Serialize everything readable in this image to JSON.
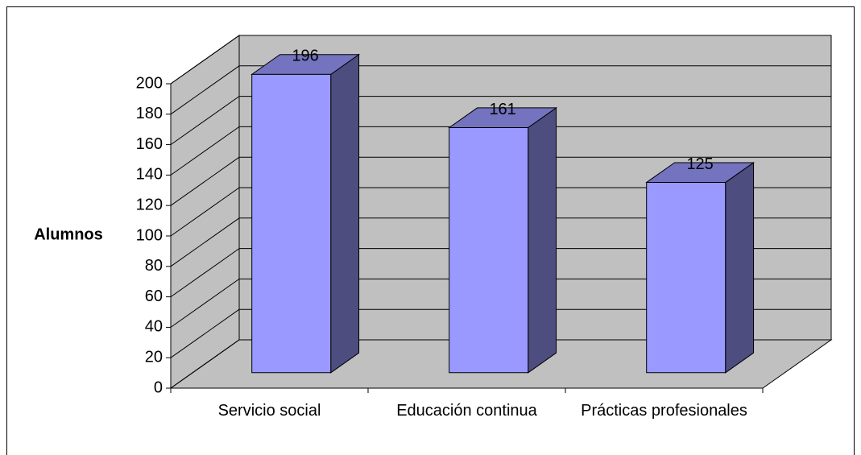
{
  "chart_data": {
    "type": "bar",
    "y_label": "Alumnos",
    "categories": [
      "Servicio social",
      "Educación continua",
      "Prácticas profesionales"
    ],
    "values": [
      196,
      161,
      125
    ],
    "color": "#9999ff",
    "ylim": [
      0,
      200
    ],
    "yticks": [
      0,
      20,
      40,
      60,
      80,
      100,
      120,
      140,
      160,
      180,
      200
    ],
    "grid": true
  }
}
